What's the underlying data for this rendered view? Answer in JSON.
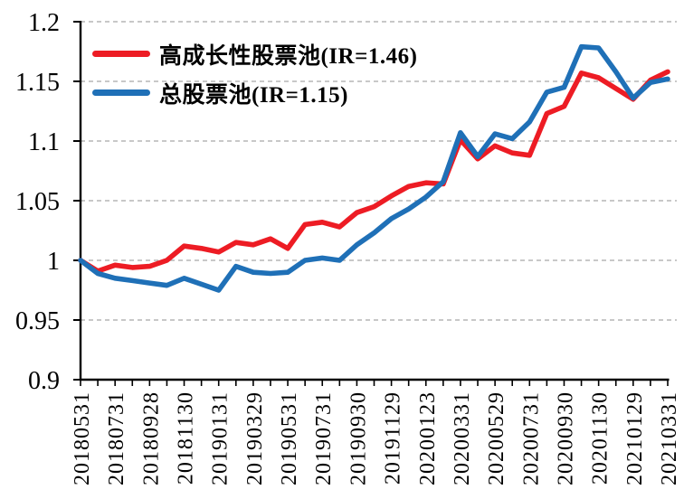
{
  "chart_data": {
    "type": "line",
    "title": "",
    "xlabel": "",
    "ylabel": "",
    "ylim": [
      0.9,
      1.2
    ],
    "y_ticks": [
      0.9,
      0.95,
      1.0,
      1.05,
      1.1,
      1.15,
      1.2
    ],
    "y_tick_labels": [
      "0.9",
      "0.95",
      "1",
      "1.05",
      "1.1",
      "1.15",
      "1.2"
    ],
    "n_points": 35,
    "x_label_every_nth_point": 2,
    "x_tick_labels": [
      "20180531",
      "20180731",
      "20180928",
      "20181130",
      "20190131",
      "20190329",
      "20190531",
      "20190731",
      "20190930",
      "20191129",
      "20200123",
      "20200331",
      "20200529",
      "20200731",
      "20200930",
      "20201130",
      "20210129",
      "20210331"
    ],
    "grid": "horizontal dashed",
    "legend_position": "top-left inside plot",
    "series": [
      {
        "name": "高成长性股票池(IR=1.46)",
        "color": "#ed1c24",
        "values": [
          1.0,
          0.991,
          0.996,
          0.994,
          0.995,
          1.0,
          1.012,
          1.01,
          1.007,
          1.015,
          1.013,
          1.018,
          1.01,
          1.03,
          1.032,
          1.028,
          1.04,
          1.045,
          1.054,
          1.062,
          1.065,
          1.064,
          1.101,
          1.085,
          1.096,
          1.09,
          1.088,
          1.123,
          1.129,
          1.157,
          1.153,
          1.144,
          1.135,
          1.151,
          1.158
        ]
      },
      {
        "name": "总股票池(IR=1.15)",
        "color": "#1f70b7",
        "values": [
          1.0,
          0.989,
          0.985,
          0.983,
          0.981,
          0.979,
          0.985,
          0.98,
          0.975,
          0.995,
          0.99,
          0.989,
          0.99,
          1.0,
          1.002,
          1.0,
          1.013,
          1.023,
          1.035,
          1.043,
          1.053,
          1.066,
          1.107,
          1.087,
          1.106,
          1.102,
          1.116,
          1.141,
          1.145,
          1.179,
          1.178,
          1.158,
          1.136,
          1.149,
          1.152
        ]
      }
    ]
  },
  "colors": {
    "grid": "#a6a6a6",
    "axis": "#000000",
    "text": "#000000",
    "background": "#ffffff"
  }
}
